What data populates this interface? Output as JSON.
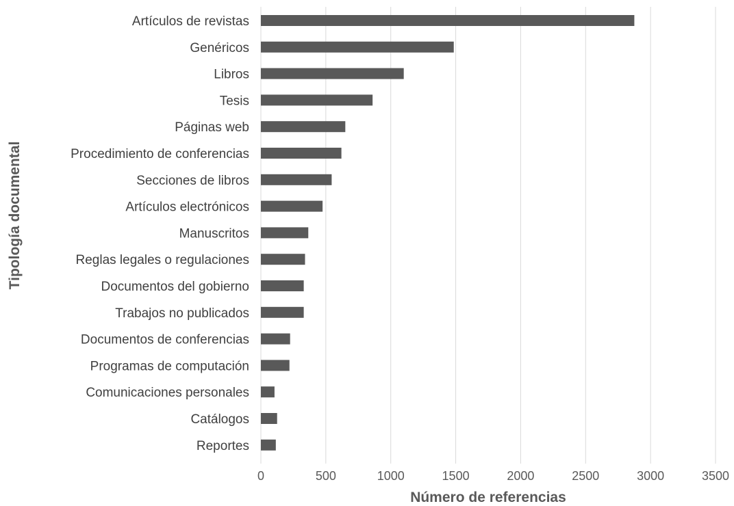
{
  "chart_data": {
    "type": "bar",
    "orientation": "horizontal",
    "categories": [
      "Artículos de revistas",
      "Genéricos",
      "Libros",
      "Tesis",
      "Páginas web",
      "Procedimiento de conferencias",
      "Secciones de libros",
      "Artículos electrónicos",
      "Manuscritos",
      "Reglas legales o regulaciones",
      "Documentos del gobierno",
      "Trabajos no publicados",
      "Documentos de conferencias",
      "Programas de computación",
      "Comunicaciones personales",
      "Catálogos",
      "Reportes"
    ],
    "values": [
      2875,
      1485,
      1100,
      860,
      650,
      620,
      545,
      475,
      365,
      340,
      330,
      330,
      225,
      220,
      105,
      125,
      115
    ],
    "xlabel": "Número de referencias",
    "ylabel": "Tipología documental",
    "xlim": [
      0,
      3500
    ],
    "xticks": [
      "0",
      "500",
      "1000",
      "1500",
      "2000",
      "2500",
      "3000",
      "3500"
    ],
    "grid": true,
    "bar_color": "#595959",
    "grid_color": "#d9d9d9"
  }
}
